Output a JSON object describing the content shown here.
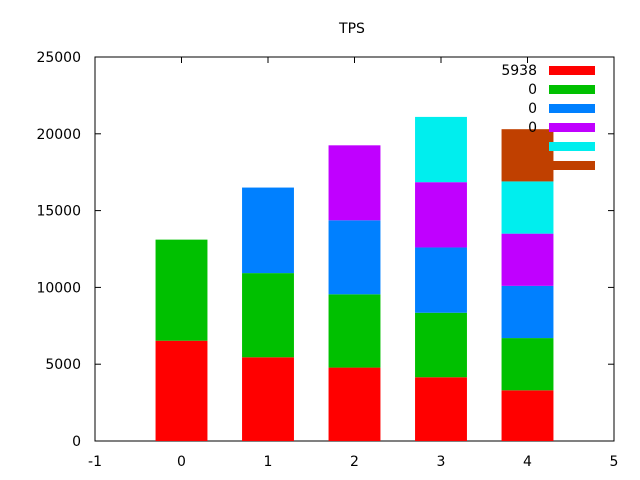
{
  "chart_data": {
    "type": "bar",
    "stacked": true,
    "title": "TPS",
    "xlabel": "",
    "ylabel": "",
    "xlim": [
      -1,
      5
    ],
    "ylim": [
      0,
      25000
    ],
    "x_ticks": [
      "-1",
      "0",
      "1",
      "2",
      "3",
      "4",
      "5"
    ],
    "y_ticks": [
      "0",
      "5000",
      "10000",
      "15000",
      "20000",
      "25000"
    ],
    "categories": [
      0,
      1,
      2,
      3,
      4
    ],
    "grid": false,
    "legend_position": "top-right",
    "series": [
      {
        "name": "5938",
        "color": "#ff0000",
        "values": [
          6530,
          5450,
          4780,
          4150,
          3300
        ]
      },
      {
        "name": "0",
        "color": "#00c000",
        "values": [
          6580,
          5480,
          4770,
          4200,
          3400
        ]
      },
      {
        "name": "0",
        "color": "#0080ff",
        "values": [
          0,
          5570,
          4820,
          4250,
          3400
        ]
      },
      {
        "name": "0",
        "color": "#c000ff",
        "values": [
          0,
          0,
          4880,
          4250,
          3400
        ]
      },
      {
        "name": "",
        "color": "#00eeee",
        "values": [
          0,
          0,
          0,
          4250,
          3400
        ]
      },
      {
        "name": "",
        "color": "#c04000",
        "values": [
          0,
          0,
          0,
          0,
          3400
        ]
      }
    ]
  }
}
